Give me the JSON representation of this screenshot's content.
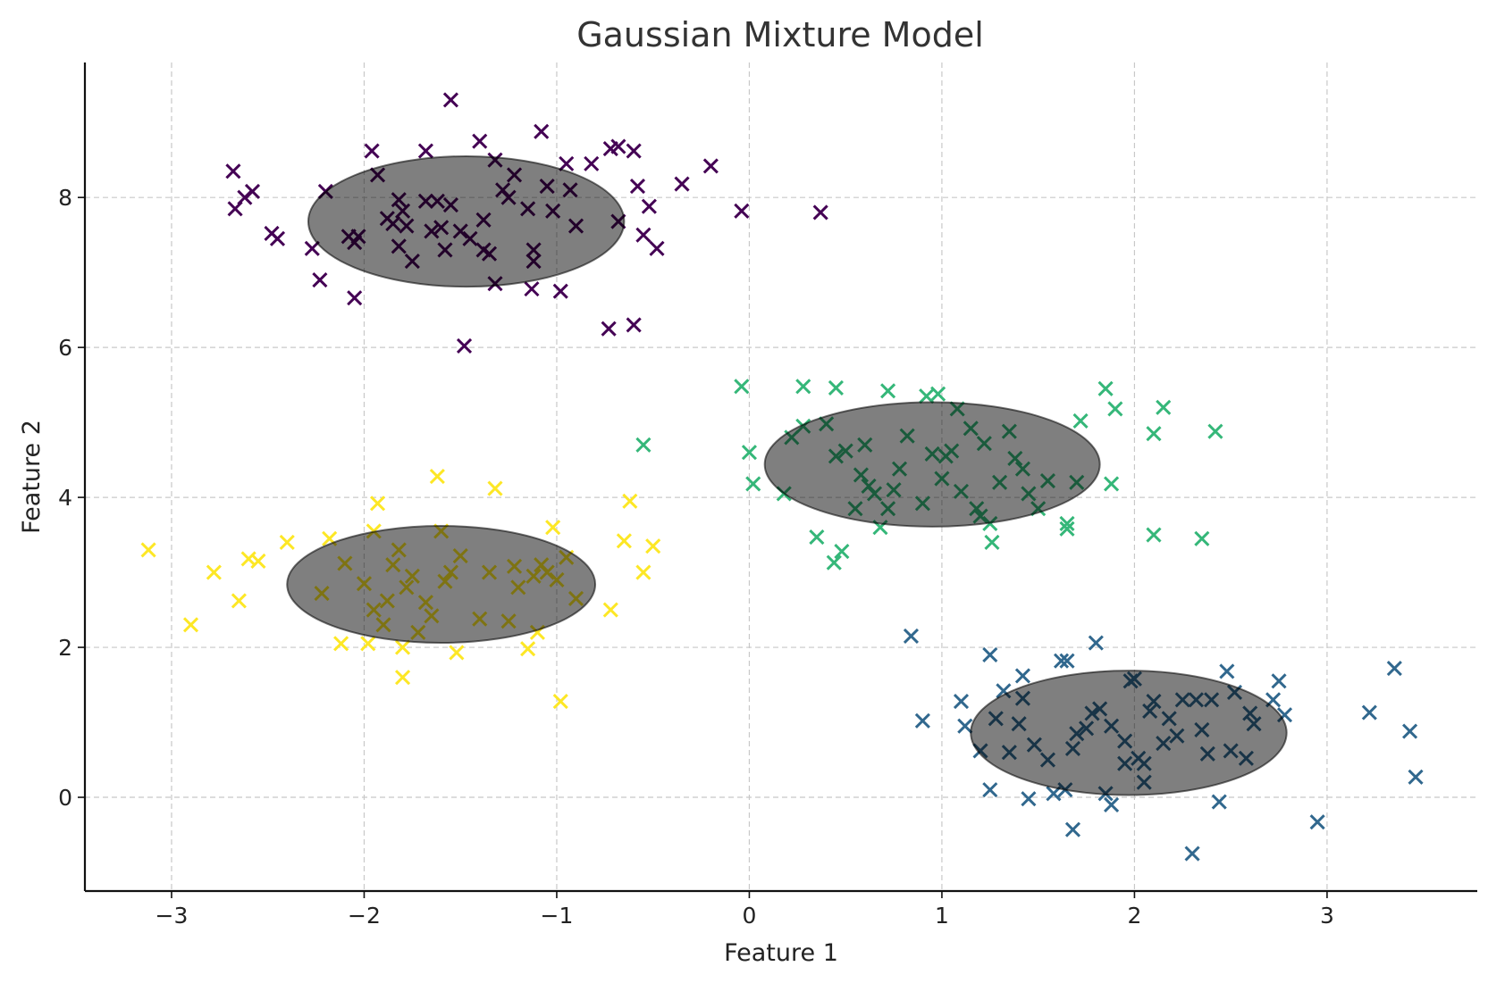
{
  "chart_data": {
    "type": "scatter",
    "title": "Gaussian Mixture Model",
    "xlabel": "Feature 1",
    "ylabel": "Feature 2",
    "xlim": [
      -3.45,
      3.78
    ],
    "ylim": [
      -1.25,
      9.8
    ],
    "grid": true,
    "legend": "none",
    "marker": "x",
    "x_ticks": [
      -3,
      -2,
      -1,
      0,
      1,
      2,
      3
    ],
    "x_tick_labels": [
      "−3",
      "−2",
      "−1",
      "0",
      "1",
      "2",
      "3"
    ],
    "y_ticks": [
      0,
      2,
      4,
      6,
      8
    ],
    "y_tick_labels": [
      "0",
      "2",
      "4",
      "6",
      "8"
    ],
    "ellipses": [
      {
        "cx": -1.47,
        "cy": 7.68,
        "rx": 0.82,
        "ry": 0.87,
        "color": "#000000",
        "opacity": 0.5
      },
      {
        "cx": 0.95,
        "cy": 4.44,
        "rx": 0.87,
        "ry": 0.83,
        "color": "#000000",
        "opacity": 0.5
      },
      {
        "cx": -1.6,
        "cy": 2.84,
        "rx": 0.8,
        "ry": 0.78,
        "color": "#000000",
        "opacity": 0.5
      },
      {
        "cx": 1.97,
        "cy": 0.86,
        "rx": 0.82,
        "ry": 0.83,
        "color": "#000000",
        "opacity": 0.5
      }
    ],
    "series": [
      {
        "color": "#440154",
        "points": [
          [
            -2.68,
            8.35
          ],
          [
            -2.62,
            8.0
          ],
          [
            -2.58,
            8.08
          ],
          [
            -2.67,
            7.85
          ],
          [
            -2.48,
            7.52
          ],
          [
            -2.45,
            7.45
          ],
          [
            -2.27,
            7.32
          ],
          [
            -2.2,
            8.08
          ],
          [
            -2.23,
            6.9
          ],
          [
            -2.08,
            7.48
          ],
          [
            -2.05,
            7.4
          ],
          [
            -2.03,
            7.48
          ],
          [
            -2.05,
            6.66
          ],
          [
            -1.96,
            8.62
          ],
          [
            -1.93,
            8.3
          ],
          [
            -1.88,
            7.72
          ],
          [
            -1.85,
            7.65
          ],
          [
            -1.82,
            7.97
          ],
          [
            -1.8,
            7.82
          ],
          [
            -1.78,
            7.62
          ],
          [
            -1.82,
            7.35
          ],
          [
            -1.75,
            7.15
          ],
          [
            -1.68,
            8.62
          ],
          [
            -1.68,
            7.95
          ],
          [
            -1.65,
            7.55
          ],
          [
            -1.6,
            7.6
          ],
          [
            -1.58,
            7.3
          ],
          [
            -1.55,
            7.9
          ],
          [
            -1.5,
            7.55
          ],
          [
            -1.45,
            7.45
          ],
          [
            -1.4,
            8.75
          ],
          [
            -1.38,
            7.7
          ],
          [
            -1.38,
            7.3
          ],
          [
            -1.35,
            7.25
          ],
          [
            -1.32,
            8.5
          ],
          [
            -1.28,
            8.1
          ],
          [
            -1.25,
            8.0
          ],
          [
            -1.22,
            8.3
          ],
          [
            -1.15,
            7.85
          ],
          [
            -1.12,
            7.3
          ],
          [
            -1.12,
            7.15
          ],
          [
            -1.13,
            6.78
          ],
          [
            -1.08,
            8.88
          ],
          [
            -1.05,
            8.15
          ],
          [
            -1.02,
            7.82
          ],
          [
            -0.95,
            8.45
          ],
          [
            -0.93,
            8.1
          ],
          [
            -0.9,
            7.62
          ],
          [
            -0.98,
            6.75
          ],
          [
            -0.82,
            8.45
          ],
          [
            -0.72,
            8.65
          ],
          [
            -0.68,
            8.68
          ],
          [
            -0.68,
            7.68
          ],
          [
            -0.6,
            8.62
          ],
          [
            -0.58,
            8.15
          ],
          [
            -0.55,
            7.5
          ],
          [
            -0.52,
            7.88
          ],
          [
            -0.48,
            7.32
          ],
          [
            -0.35,
            8.18
          ],
          [
            -0.2,
            8.42
          ],
          [
            -0.04,
            7.82
          ],
          [
            0.37,
            7.8
          ],
          [
            -1.55,
            9.3
          ],
          [
            -1.48,
            6.02
          ],
          [
            -0.73,
            6.25
          ],
          [
            -0.6,
            6.3
          ],
          [
            -1.32,
            6.85
          ],
          [
            -1.62,
            7.95
          ]
        ]
      },
      {
        "color": "#31688e",
        "points": [
          [
            0.84,
            2.15
          ],
          [
            0.9,
            1.02
          ],
          [
            1.1,
            1.28
          ],
          [
            1.12,
            0.95
          ],
          [
            1.2,
            0.62
          ],
          [
            1.25,
            1.9
          ],
          [
            1.25,
            0.1
          ],
          [
            1.28,
            1.05
          ],
          [
            1.32,
            1.42
          ],
          [
            1.35,
            0.6
          ],
          [
            1.4,
            0.98
          ],
          [
            1.42,
            1.62
          ],
          [
            1.42,
            1.32
          ],
          [
            1.45,
            -0.02
          ],
          [
            1.48,
            0.7
          ],
          [
            1.55,
            0.5
          ],
          [
            1.58,
            0.05
          ],
          [
            1.62,
            1.82
          ],
          [
            1.64,
            0.1
          ],
          [
            1.65,
            1.82
          ],
          [
            1.68,
            0.65
          ],
          [
            1.68,
            -0.43
          ],
          [
            1.7,
            0.85
          ],
          [
            1.75,
            0.92
          ],
          [
            1.78,
            1.12
          ],
          [
            1.8,
            2.06
          ],
          [
            1.82,
            1.18
          ],
          [
            1.85,
            0.05
          ],
          [
            1.88,
            0.95
          ],
          [
            1.88,
            -0.1
          ],
          [
            1.95,
            0.75
          ],
          [
            1.98,
            1.55
          ],
          [
            2.0,
            1.58
          ],
          [
            2.02,
            0.52
          ],
          [
            2.05,
            0.45
          ],
          [
            2.05,
            0.2
          ],
          [
            2.08,
            1.15
          ],
          [
            2.1,
            1.28
          ],
          [
            2.15,
            0.72
          ],
          [
            2.18,
            1.05
          ],
          [
            2.22,
            0.82
          ],
          [
            2.25,
            1.3
          ],
          [
            2.3,
            -0.75
          ],
          [
            2.32,
            1.3
          ],
          [
            2.35,
            0.9
          ],
          [
            2.38,
            0.58
          ],
          [
            2.4,
            1.3
          ],
          [
            2.44,
            -0.06
          ],
          [
            2.48,
            1.68
          ],
          [
            2.5,
            0.62
          ],
          [
            2.52,
            1.4
          ],
          [
            2.58,
            0.52
          ],
          [
            2.6,
            1.12
          ],
          [
            2.62,
            0.98
          ],
          [
            2.72,
            1.3
          ],
          [
            2.75,
            1.55
          ],
          [
            2.78,
            1.1
          ],
          [
            2.95,
            -0.33
          ],
          [
            3.22,
            1.13
          ],
          [
            3.35,
            1.72
          ],
          [
            3.43,
            0.88
          ],
          [
            3.46,
            0.27
          ],
          [
            1.95,
            0.45
          ]
        ]
      },
      {
        "color": "#35b779",
        "points": [
          [
            -0.55,
            4.7
          ],
          [
            -0.04,
            5.48
          ],
          [
            0.0,
            4.6
          ],
          [
            0.02,
            4.18
          ],
          [
            0.18,
            4.05
          ],
          [
            0.22,
            4.8
          ],
          [
            0.28,
            5.48
          ],
          [
            0.28,
            4.95
          ],
          [
            0.35,
            3.47
          ],
          [
            0.4,
            4.98
          ],
          [
            0.44,
            3.13
          ],
          [
            0.45,
            5.46
          ],
          [
            0.45,
            4.55
          ],
          [
            0.48,
            3.28
          ],
          [
            0.5,
            4.62
          ],
          [
            0.55,
            3.85
          ],
          [
            0.58,
            4.3
          ],
          [
            0.6,
            4.7
          ],
          [
            0.62,
            4.15
          ],
          [
            0.65,
            4.05
          ],
          [
            0.68,
            3.6
          ],
          [
            0.72,
            5.42
          ],
          [
            0.72,
            3.85
          ],
          [
            0.75,
            4.1
          ],
          [
            0.78,
            4.38
          ],
          [
            0.82,
            4.82
          ],
          [
            0.9,
            3.92
          ],
          [
            0.92,
            5.35
          ],
          [
            0.95,
            4.58
          ],
          [
            0.98,
            5.38
          ],
          [
            1.0,
            4.25
          ],
          [
            1.02,
            4.55
          ],
          [
            1.05,
            4.62
          ],
          [
            1.08,
            5.18
          ],
          [
            1.1,
            4.08
          ],
          [
            1.15,
            4.92
          ],
          [
            1.18,
            3.85
          ],
          [
            1.2,
            3.75
          ],
          [
            1.22,
            4.72
          ],
          [
            1.25,
            3.65
          ],
          [
            1.26,
            3.4
          ],
          [
            1.3,
            4.2
          ],
          [
            1.35,
            4.88
          ],
          [
            1.38,
            4.52
          ],
          [
            1.42,
            4.38
          ],
          [
            1.45,
            4.05
          ],
          [
            1.5,
            3.85
          ],
          [
            1.55,
            4.22
          ],
          [
            1.65,
            3.65
          ],
          [
            1.65,
            3.58
          ],
          [
            1.7,
            4.2
          ],
          [
            1.72,
            5.02
          ],
          [
            1.85,
            5.45
          ],
          [
            1.88,
            4.18
          ],
          [
            1.9,
            5.18
          ],
          [
            2.1,
            4.85
          ],
          [
            2.1,
            3.5
          ],
          [
            2.15,
            5.2
          ],
          [
            2.35,
            3.45
          ],
          [
            2.42,
            4.88
          ]
        ]
      },
      {
        "color": "#fde725",
        "points": [
          [
            -3.12,
            3.3
          ],
          [
            -2.9,
            2.3
          ],
          [
            -2.78,
            3.0
          ],
          [
            -2.65,
            2.62
          ],
          [
            -2.6,
            3.18
          ],
          [
            -2.55,
            3.15
          ],
          [
            -2.4,
            3.4
          ],
          [
            -2.22,
            2.72
          ],
          [
            -2.18,
            3.45
          ],
          [
            -2.12,
            2.05
          ],
          [
            -2.1,
            3.12
          ],
          [
            -2.0,
            2.85
          ],
          [
            -1.98,
            2.05
          ],
          [
            -1.95,
            2.5
          ],
          [
            -1.95,
            3.55
          ],
          [
            -1.93,
            3.92
          ],
          [
            -1.9,
            2.3
          ],
          [
            -1.88,
            2.62
          ],
          [
            -1.85,
            3.1
          ],
          [
            -1.82,
            3.3
          ],
          [
            -1.8,
            2.0
          ],
          [
            -1.8,
            1.6
          ],
          [
            -1.78,
            2.8
          ],
          [
            -1.75,
            2.95
          ],
          [
            -1.72,
            2.2
          ],
          [
            -1.68,
            2.6
          ],
          [
            -1.65,
            2.42
          ],
          [
            -1.62,
            4.28
          ],
          [
            -1.6,
            3.55
          ],
          [
            -1.58,
            2.88
          ],
          [
            -1.55,
            3.0
          ],
          [
            -1.52,
            1.93
          ],
          [
            -1.5,
            3.22
          ],
          [
            -1.4,
            2.38
          ],
          [
            -1.35,
            3.0
          ],
          [
            -1.32,
            4.12
          ],
          [
            -1.25,
            2.35
          ],
          [
            -1.22,
            3.08
          ],
          [
            -1.2,
            2.8
          ],
          [
            -1.15,
            1.98
          ],
          [
            -1.12,
            2.95
          ],
          [
            -1.1,
            2.2
          ],
          [
            -1.08,
            3.1
          ],
          [
            -1.05,
            3.0
          ],
          [
            -1.02,
            3.6
          ],
          [
            -1.0,
            2.9
          ],
          [
            -0.98,
            1.28
          ],
          [
            -0.95,
            3.2
          ],
          [
            -0.9,
            2.65
          ],
          [
            -0.72,
            2.5
          ],
          [
            -0.65,
            3.42
          ],
          [
            -0.62,
            3.95
          ],
          [
            -0.55,
            3.0
          ],
          [
            -0.5,
            3.35
          ]
        ]
      }
    ]
  }
}
